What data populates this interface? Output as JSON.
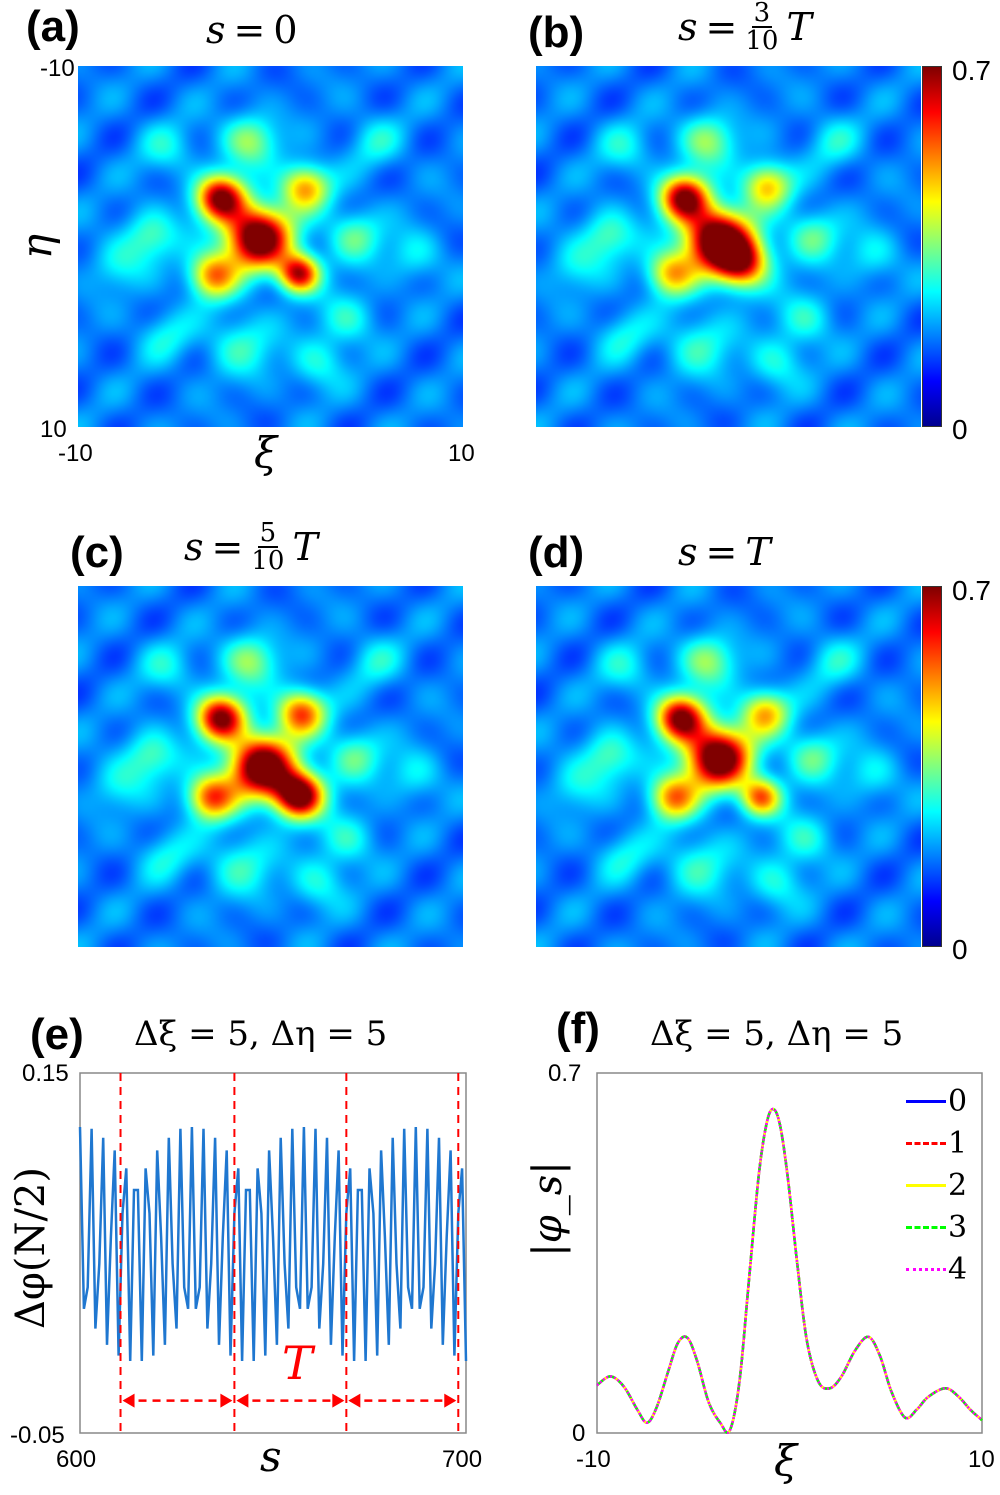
{
  "panels": {
    "a": {
      "label": "(a)",
      "title_lhs": "s",
      "title_eq": "=",
      "title_rhs": "0"
    },
    "b": {
      "label": "(b)",
      "title_lhs": "s",
      "title_eq": "=",
      "title_num": "3",
      "title_den": "10",
      "title_T": "T"
    },
    "c": {
      "label": "(c)",
      "title_lhs": "s",
      "title_eq": "=",
      "title_num": "5",
      "title_den": "10",
      "title_T": "T"
    },
    "d": {
      "label": "(d)",
      "title_lhs": "s",
      "title_eq": "=",
      "title_rhs": "T"
    },
    "e": {
      "label": "(e)",
      "title": "Δξ = 5, Δη = 5"
    },
    "f": {
      "label": "(f)",
      "title": "Δξ = 5, Δη = 5"
    }
  },
  "heatmap_axes": {
    "xlabel": "ξ",
    "ylabel": "η",
    "x_ticks": [
      "-10",
      "10"
    ],
    "y_ticks": [
      "-10",
      "10"
    ],
    "colorbar_ticks": [
      "0.7",
      "0"
    ]
  },
  "chart_data": [
    {
      "type": "heatmap",
      "panel": "a",
      "xlim": [
        -10,
        10
      ],
      "ylim": [
        -10,
        10
      ],
      "clim": [
        0,
        0.7
      ],
      "peaks": [
        {
          "xi": -0.65,
          "eta": -0.5,
          "value": 0.72,
          "width": 1.2
        },
        {
          "xi": -2.6,
          "eta": -2.7,
          "value": 0.6,
          "width": 0.9
        },
        {
          "xi": 1.8,
          "eta": -3.3,
          "value": 0.38,
          "width": 0.9
        },
        {
          "xi": -3.0,
          "eta": 1.6,
          "value": 0.4,
          "width": 0.9
        },
        {
          "xi": 1.5,
          "eta": 1.5,
          "value": 0.55,
          "width": 0.75
        }
      ]
    },
    {
      "type": "heatmap",
      "panel": "b",
      "xlim": [
        -10,
        10
      ],
      "ylim": [
        -10,
        10
      ],
      "clim": [
        0,
        0.7
      ],
      "peaks": [
        {
          "xi": -0.6,
          "eta": -0.4,
          "value": 0.72,
          "width": 1.2
        },
        {
          "xi": 0.7,
          "eta": 0.9,
          "value": 0.5,
          "width": 1.0
        },
        {
          "xi": -2.3,
          "eta": -2.7,
          "value": 0.6,
          "width": 0.9
        },
        {
          "xi": 2.0,
          "eta": -3.4,
          "value": 0.35,
          "width": 0.9
        },
        {
          "xi": -3.0,
          "eta": 1.5,
          "value": 0.35,
          "width": 0.9
        }
      ]
    },
    {
      "type": "heatmap",
      "panel": "c",
      "xlim": [
        -10,
        10
      ],
      "ylim": [
        -10,
        10
      ],
      "clim": [
        0,
        0.7
      ],
      "peaks": [
        {
          "xi": -0.45,
          "eta": 0.0,
          "value": 0.72,
          "width": 1.2
        },
        {
          "xi": -2.6,
          "eta": -2.7,
          "value": 0.6,
          "width": 0.9
        },
        {
          "xi": 1.6,
          "eta": -3.0,
          "value": 0.45,
          "width": 0.9
        },
        {
          "xi": -3.1,
          "eta": 1.7,
          "value": 0.45,
          "width": 0.9
        },
        {
          "xi": 1.5,
          "eta": 1.6,
          "value": 0.68,
          "width": 0.9
        }
      ]
    },
    {
      "type": "heatmap",
      "panel": "d",
      "xlim": [
        -10,
        10
      ],
      "ylim": [
        -10,
        10
      ],
      "clim": [
        0,
        0.7
      ],
      "peaks": [
        {
          "xi": -0.55,
          "eta": -0.5,
          "value": 0.72,
          "width": 1.2
        },
        {
          "xi": -2.5,
          "eta": -2.7,
          "value": 0.6,
          "width": 0.9
        },
        {
          "xi": 1.9,
          "eta": -3.0,
          "value": 0.35,
          "width": 0.9
        },
        {
          "xi": -2.9,
          "eta": 1.7,
          "value": 0.4,
          "width": 0.9
        },
        {
          "xi": 1.7,
          "eta": 1.7,
          "value": 0.42,
          "width": 0.75
        }
      ]
    },
    {
      "type": "line",
      "panel": "e",
      "title": "Δξ = 5, Δη = 5",
      "xlabel": "s",
      "ylabel": "Δφ(N/2)",
      "xlim": [
        600,
        700
      ],
      "ylim": [
        -0.05,
        0.15
      ],
      "x_ticks": [
        "600",
        "700"
      ],
      "y_ticks": [
        "0.15",
        "-0.05"
      ],
      "x_start": 600,
      "x_step": 1,
      "values": [
        0.12,
        0.019,
        0.031,
        0.119,
        0.008,
        0.044,
        0.114,
        -0.001,
        0.059,
        0.107,
        -0.007,
        0.072,
        0.097,
        -0.01,
        0.085,
        0.085,
        -0.01,
        0.097,
        0.072,
        -0.007,
        0.107,
        0.059,
        -0.001,
        0.114,
        0.044,
        0.008,
        0.119,
        0.031,
        0.019,
        0.12,
        0.019,
        0.031,
        0.119,
        0.008,
        0.044,
        0.114,
        -0.001,
        0.059,
        0.107,
        -0.007,
        0.072,
        0.097,
        -0.01,
        0.085,
        0.085,
        -0.01,
        0.097,
        0.072,
        -0.007,
        0.107,
        0.059,
        -0.001,
        0.114,
        0.044,
        0.008,
        0.119,
        0.031,
        0.019,
        0.12,
        0.019,
        0.031,
        0.119,
        0.008,
        0.044,
        0.114,
        -0.001,
        0.059,
        0.107,
        -0.007,
        0.072,
        0.097,
        -0.01,
        0.085,
        0.085,
        -0.01,
        0.097,
        0.072,
        -0.007,
        0.107,
        0.059,
        -0.001,
        0.114,
        0.044,
        0.008,
        0.119,
        0.031,
        0.019,
        0.12,
        0.019,
        0.031,
        0.119,
        0.008,
        0.044,
        0.114,
        -0.001,
        0.059,
        0.107,
        -0.007,
        0.072,
        0.097,
        -0.01
      ],
      "line_color": "#1f77d0",
      "period_markers": [
        610.5,
        640,
        669,
        698
      ],
      "period_arrow_y": -0.032,
      "period_label": "T",
      "marker_color": "#ff0000"
    },
    {
      "type": "line",
      "panel": "f",
      "title": "Δξ = 5, Δη = 5",
      "xlabel": "ξ",
      "ylabel": "|φ_s|",
      "xlim": [
        -10,
        10
      ],
      "ylim": [
        0,
        0.7
      ],
      "x_ticks": [
        "-10",
        "10"
      ],
      "y_ticks": [
        "0.7",
        "0"
      ],
      "x": [
        -10,
        -9.3,
        -8.6,
        -7.9,
        -7.4,
        -6.9,
        -6.3,
        -5.8,
        -5.3,
        -4.8,
        -4.2,
        -3.6,
        -3.1,
        -2.6,
        -2.1,
        -1.6,
        -1.2,
        -0.86,
        -0.5,
        -0.1,
        0.4,
        0.9,
        1.5,
        2.1,
        2.7,
        3.4,
        4.1,
        4.7,
        5.3,
        6.0,
        6.6,
        7.2,
        8.1,
        8.8,
        9.4,
        10
      ],
      "y_values": [
        0.093,
        0.11,
        0.09,
        0.045,
        0.02,
        0.05,
        0.12,
        0.175,
        0.185,
        0.14,
        0.06,
        0.02,
        0.005,
        0.1,
        0.3,
        0.5,
        0.6,
        0.63,
        0.6,
        0.5,
        0.33,
        0.18,
        0.1,
        0.087,
        0.11,
        0.16,
        0.187,
        0.15,
        0.08,
        0.03,
        0.045,
        0.07,
        0.087,
        0.07,
        0.045,
        0.025
      ],
      "legend": {
        "position": "top-right",
        "entries": [
          {
            "label": "0",
            "color": "#0000ff",
            "style": "solid"
          },
          {
            "label": "1",
            "color": "#ff0000",
            "style": "dashed"
          },
          {
            "label": "2",
            "color": "#ffff00",
            "style": "solid"
          },
          {
            "label": "3",
            "color": "#00ff00",
            "style": "dashed"
          },
          {
            "label": "4",
            "color": "#ff00ff",
            "style": "dotted"
          }
        ]
      }
    }
  ]
}
